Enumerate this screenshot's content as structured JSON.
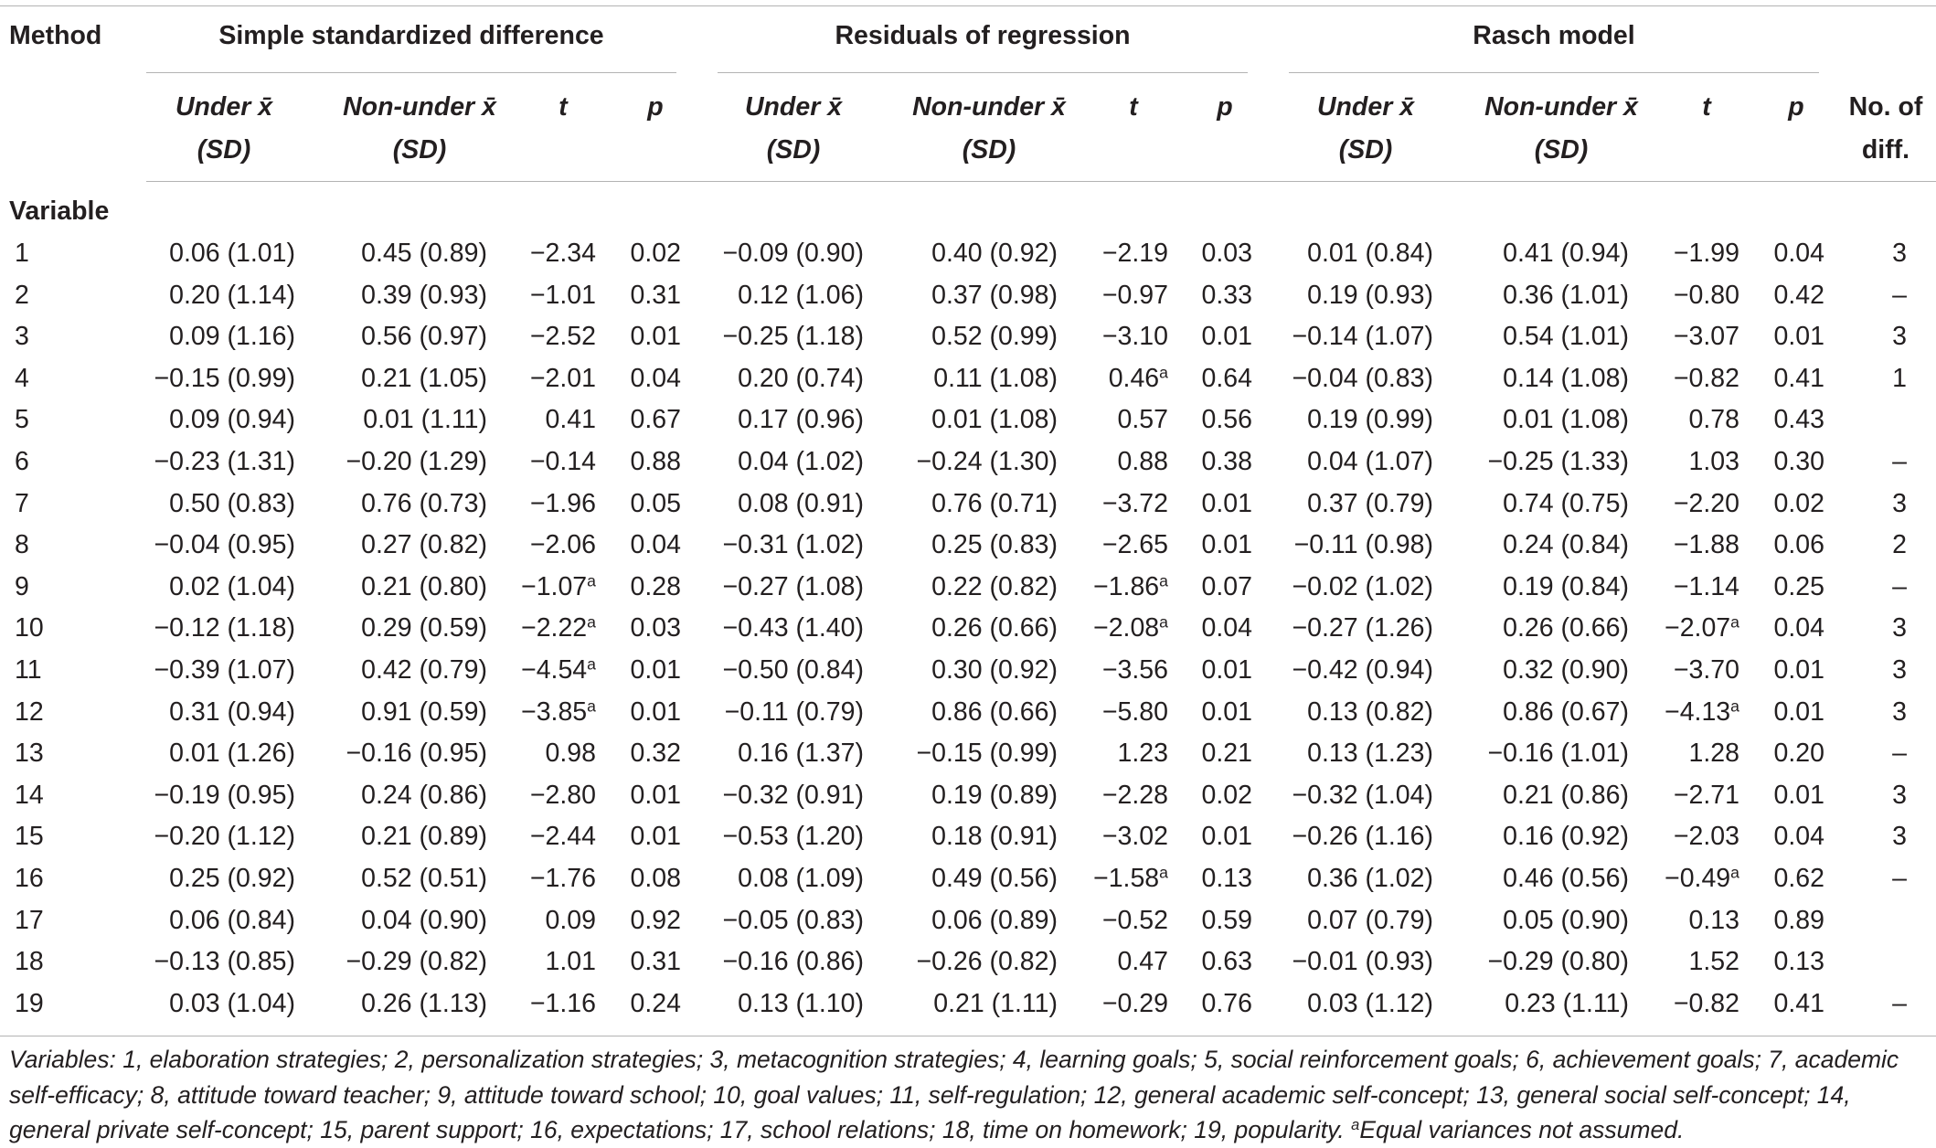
{
  "header": {
    "method": "Method",
    "groups": [
      "Simple standardized difference",
      "Residuals of regression",
      "Rasch model"
    ],
    "under_line1": "Under x̄",
    "nonunder_line1": "Non-under x̄",
    "sd_line2": "(SD)",
    "t": "t",
    "p": "p",
    "nodiff_line1": "No. of",
    "nodiff_line2": "diff.",
    "variable": "Variable"
  },
  "rows": [
    {
      "v": "1",
      "c": [
        [
          "0.06 (1.01)",
          ""
        ],
        [
          "0.45 (0.89)",
          ""
        ],
        [
          "−2.34",
          ""
        ],
        [
          "0.02",
          ""
        ],
        [
          "−0.09 (0.90)",
          ""
        ],
        [
          "0.40 (0.92)",
          ""
        ],
        [
          "−2.19",
          ""
        ],
        [
          "0.03",
          ""
        ],
        [
          "0.01 (0.84)",
          ""
        ],
        [
          "0.41 (0.94)",
          ""
        ],
        [
          "−1.99",
          ""
        ],
        [
          "0.04",
          ""
        ],
        [
          "3",
          ""
        ]
      ]
    },
    {
      "v": "2",
      "c": [
        [
          "0.20 (1.14)",
          ""
        ],
        [
          "0.39 (0.93)",
          ""
        ],
        [
          "−1.01",
          ""
        ],
        [
          "0.31",
          ""
        ],
        [
          "0.12 (1.06)",
          ""
        ],
        [
          "0.37 (0.98)",
          ""
        ],
        [
          "−0.97",
          ""
        ],
        [
          "0.33",
          ""
        ],
        [
          "0.19 (0.93)",
          ""
        ],
        [
          "0.36 (1.01)",
          ""
        ],
        [
          "−0.80",
          ""
        ],
        [
          "0.42",
          ""
        ],
        [
          "–",
          ""
        ]
      ]
    },
    {
      "v": "3",
      "c": [
        [
          "0.09 (1.16)",
          ""
        ],
        [
          "0.56 (0.97)",
          ""
        ],
        [
          "−2.52",
          ""
        ],
        [
          "0.01",
          ""
        ],
        [
          "−0.25 (1.18)",
          ""
        ],
        [
          "0.52 (0.99)",
          ""
        ],
        [
          "−3.10",
          ""
        ],
        [
          "0.01",
          ""
        ],
        [
          "−0.14 (1.07)",
          ""
        ],
        [
          "0.54 (1.01)",
          ""
        ],
        [
          "−3.07",
          ""
        ],
        [
          "0.01",
          ""
        ],
        [
          "3",
          ""
        ]
      ]
    },
    {
      "v": "4",
      "c": [
        [
          "−0.15 (0.99)",
          ""
        ],
        [
          "0.21 (1.05)",
          ""
        ],
        [
          "−2.01",
          ""
        ],
        [
          "0.04",
          ""
        ],
        [
          "0.20 (0.74)",
          ""
        ],
        [
          "0.11 (1.08)",
          ""
        ],
        [
          "0.46",
          "a"
        ],
        [
          "0.64",
          ""
        ],
        [
          "−0.04 (0.83)",
          ""
        ],
        [
          "0.14 (1.08)",
          ""
        ],
        [
          "−0.82",
          ""
        ],
        [
          "0.41",
          ""
        ],
        [
          "1",
          ""
        ]
      ]
    },
    {
      "v": "5",
      "c": [
        [
          "0.09 (0.94)",
          ""
        ],
        [
          "0.01 (1.11)",
          ""
        ],
        [
          "0.41",
          ""
        ],
        [
          "0.67",
          ""
        ],
        [
          "0.17 (0.96)",
          ""
        ],
        [
          "0.01 (1.08)",
          ""
        ],
        [
          "0.57",
          ""
        ],
        [
          "0.56",
          ""
        ],
        [
          "0.19 (0.99)",
          ""
        ],
        [
          "0.01 (1.08)",
          ""
        ],
        [
          "0.78",
          ""
        ],
        [
          "0.43",
          ""
        ],
        [
          "",
          ""
        ]
      ]
    },
    {
      "v": "6",
      "c": [
        [
          "−0.23 (1.31)",
          ""
        ],
        [
          "−0.20 (1.29)",
          ""
        ],
        [
          "−0.14",
          ""
        ],
        [
          "0.88",
          ""
        ],
        [
          "0.04 (1.02)",
          ""
        ],
        [
          "−0.24 (1.30)",
          ""
        ],
        [
          "0.88",
          ""
        ],
        [
          "0.38",
          ""
        ],
        [
          "0.04 (1.07)",
          ""
        ],
        [
          "−0.25 (1.33)",
          ""
        ],
        [
          "1.03",
          ""
        ],
        [
          "0.30",
          ""
        ],
        [
          "–",
          ""
        ]
      ]
    },
    {
      "v": "7",
      "c": [
        [
          "0.50 (0.83)",
          ""
        ],
        [
          "0.76 (0.73)",
          ""
        ],
        [
          "−1.96",
          ""
        ],
        [
          "0.05",
          ""
        ],
        [
          "0.08 (0.91)",
          ""
        ],
        [
          "0.76 (0.71)",
          ""
        ],
        [
          "−3.72",
          ""
        ],
        [
          "0.01",
          ""
        ],
        [
          "0.37 (0.79)",
          ""
        ],
        [
          "0.74 (0.75)",
          ""
        ],
        [
          "−2.20",
          ""
        ],
        [
          "0.02",
          ""
        ],
        [
          "3",
          ""
        ]
      ]
    },
    {
      "v": "8",
      "c": [
        [
          "−0.04 (0.95)",
          ""
        ],
        [
          "0.27 (0.82)",
          ""
        ],
        [
          "−2.06",
          ""
        ],
        [
          "0.04",
          ""
        ],
        [
          "−0.31 (1.02)",
          ""
        ],
        [
          "0.25 (0.83)",
          ""
        ],
        [
          "−2.65",
          ""
        ],
        [
          "0.01",
          ""
        ],
        [
          "−0.11 (0.98)",
          ""
        ],
        [
          "0.24 (0.84)",
          ""
        ],
        [
          "−1.88",
          ""
        ],
        [
          "0.06",
          ""
        ],
        [
          "2",
          ""
        ]
      ]
    },
    {
      "v": "9",
      "c": [
        [
          "0.02 (1.04)",
          ""
        ],
        [
          "0.21 (0.80)",
          ""
        ],
        [
          "−1.07",
          "a"
        ],
        [
          "0.28",
          ""
        ],
        [
          "−0.27 (1.08)",
          ""
        ],
        [
          "0.22 (0.82)",
          ""
        ],
        [
          "−1.86",
          "a"
        ],
        [
          "0.07",
          ""
        ],
        [
          "−0.02 (1.02)",
          ""
        ],
        [
          "0.19 (0.84)",
          ""
        ],
        [
          "−1.14",
          ""
        ],
        [
          "0.25",
          ""
        ],
        [
          "–",
          ""
        ]
      ]
    },
    {
      "v": "10",
      "c": [
        [
          "−0.12 (1.18)",
          ""
        ],
        [
          "0.29 (0.59)",
          ""
        ],
        [
          "−2.22",
          "a"
        ],
        [
          "0.03",
          ""
        ],
        [
          "−0.43 (1.40)",
          ""
        ],
        [
          "0.26 (0.66)",
          ""
        ],
        [
          "−2.08",
          "a"
        ],
        [
          "0.04",
          ""
        ],
        [
          "−0.27 (1.26)",
          ""
        ],
        [
          "0.26 (0.66)",
          ""
        ],
        [
          "−2.07",
          "a"
        ],
        [
          "0.04",
          ""
        ],
        [
          "3",
          ""
        ]
      ]
    },
    {
      "v": "11",
      "c": [
        [
          "−0.39 (1.07)",
          ""
        ],
        [
          "0.42 (0.79)",
          ""
        ],
        [
          "−4.54",
          "a"
        ],
        [
          "0.01",
          ""
        ],
        [
          "−0.50 (0.84)",
          ""
        ],
        [
          "0.30 (0.92)",
          ""
        ],
        [
          "−3.56",
          ""
        ],
        [
          "0.01",
          ""
        ],
        [
          "−0.42 (0.94)",
          ""
        ],
        [
          "0.32 (0.90)",
          ""
        ],
        [
          "−3.70",
          ""
        ],
        [
          "0.01",
          ""
        ],
        [
          "3",
          ""
        ]
      ]
    },
    {
      "v": "12",
      "c": [
        [
          "0.31 (0.94)",
          ""
        ],
        [
          "0.91 (0.59)",
          ""
        ],
        [
          "−3.85",
          "a"
        ],
        [
          "0.01",
          ""
        ],
        [
          "−0.11 (0.79)",
          ""
        ],
        [
          "0.86 (0.66)",
          ""
        ],
        [
          "−5.80",
          ""
        ],
        [
          "0.01",
          ""
        ],
        [
          "0.13 (0.82)",
          ""
        ],
        [
          "0.86 (0.67)",
          ""
        ],
        [
          "−4.13",
          "a"
        ],
        [
          "0.01",
          ""
        ],
        [
          "3",
          ""
        ]
      ]
    },
    {
      "v": "13",
      "c": [
        [
          "0.01 (1.26)",
          ""
        ],
        [
          "−0.16 (0.95)",
          ""
        ],
        [
          "0.98",
          ""
        ],
        [
          "0.32",
          ""
        ],
        [
          "0.16 (1.37)",
          ""
        ],
        [
          "−0.15 (0.99)",
          ""
        ],
        [
          "1.23",
          ""
        ],
        [
          "0.21",
          ""
        ],
        [
          "0.13 (1.23)",
          ""
        ],
        [
          "−0.16 (1.01)",
          ""
        ],
        [
          "1.28",
          ""
        ],
        [
          "0.20",
          ""
        ],
        [
          "–",
          ""
        ]
      ]
    },
    {
      "v": "14",
      "c": [
        [
          "−0.19 (0.95)",
          ""
        ],
        [
          "0.24 (0.86)",
          ""
        ],
        [
          "−2.80",
          ""
        ],
        [
          "0.01",
          ""
        ],
        [
          "−0.32 (0.91)",
          ""
        ],
        [
          "0.19 (0.89)",
          ""
        ],
        [
          "−2.28",
          ""
        ],
        [
          "0.02",
          ""
        ],
        [
          "−0.32 (1.04)",
          ""
        ],
        [
          "0.21 (0.86)",
          ""
        ],
        [
          "−2.71",
          ""
        ],
        [
          "0.01",
          ""
        ],
        [
          "3",
          ""
        ]
      ]
    },
    {
      "v": "15",
      "c": [
        [
          "−0.20 (1.12)",
          ""
        ],
        [
          "0.21 (0.89)",
          ""
        ],
        [
          "−2.44",
          ""
        ],
        [
          "0.01",
          ""
        ],
        [
          "−0.53 (1.20)",
          ""
        ],
        [
          "0.18 (0.91)",
          ""
        ],
        [
          "−3.02",
          ""
        ],
        [
          "0.01",
          ""
        ],
        [
          "−0.26 (1.16)",
          ""
        ],
        [
          "0.16 (0.92)",
          ""
        ],
        [
          "−2.03",
          ""
        ],
        [
          "0.04",
          ""
        ],
        [
          "3",
          ""
        ]
      ]
    },
    {
      "v": "16",
      "c": [
        [
          "0.25 (0.92)",
          ""
        ],
        [
          "0.52 (0.51)",
          ""
        ],
        [
          "−1.76",
          ""
        ],
        [
          "0.08",
          ""
        ],
        [
          "0.08 (1.09)",
          ""
        ],
        [
          "0.49 (0.56)",
          ""
        ],
        [
          "−1.58",
          "a"
        ],
        [
          "0.13",
          ""
        ],
        [
          "0.36 (1.02)",
          ""
        ],
        [
          "0.46 (0.56)",
          ""
        ],
        [
          "−0.49",
          "a"
        ],
        [
          "0.62",
          ""
        ],
        [
          "–",
          ""
        ]
      ]
    },
    {
      "v": "17",
      "c": [
        [
          "0.06 (0.84)",
          ""
        ],
        [
          "0.04 (0.90)",
          ""
        ],
        [
          "0.09",
          ""
        ],
        [
          "0.92",
          ""
        ],
        [
          "−0.05 (0.83)",
          ""
        ],
        [
          "0.06 (0.89)",
          ""
        ],
        [
          "−0.52",
          ""
        ],
        [
          "0.59",
          ""
        ],
        [
          "0.07 (0.79)",
          ""
        ],
        [
          "0.05 (0.90)",
          ""
        ],
        [
          "0.13",
          ""
        ],
        [
          "0.89",
          ""
        ],
        [
          "",
          ""
        ]
      ]
    },
    {
      "v": "18",
      "c": [
        [
          "−0.13 (0.85)",
          ""
        ],
        [
          "−0.29 (0.82)",
          ""
        ],
        [
          "1.01",
          ""
        ],
        [
          "0.31",
          ""
        ],
        [
          "−0.16 (0.86)",
          ""
        ],
        [
          "−0.26 (0.82)",
          ""
        ],
        [
          "0.47",
          ""
        ],
        [
          "0.63",
          ""
        ],
        [
          "−0.01 (0.93)",
          ""
        ],
        [
          "−0.29 (0.80)",
          ""
        ],
        [
          "1.52",
          ""
        ],
        [
          "0.13",
          ""
        ],
        [
          "",
          ""
        ]
      ]
    },
    {
      "v": "19",
      "c": [
        [
          "0.03 (1.04)",
          ""
        ],
        [
          "0.26 (1.13)",
          ""
        ],
        [
          "−1.16",
          ""
        ],
        [
          "0.24",
          ""
        ],
        [
          "0.13 (1.10)",
          ""
        ],
        [
          "0.21 (1.11)",
          ""
        ],
        [
          "−0.29",
          ""
        ],
        [
          "0.76",
          ""
        ],
        [
          "0.03 (1.12)",
          ""
        ],
        [
          "0.23 (1.11)",
          ""
        ],
        [
          "−0.82",
          ""
        ],
        [
          "0.41",
          ""
        ],
        [
          "–",
          ""
        ]
      ]
    }
  ],
  "footnote": {
    "text": "Variables: 1, elaboration strategies; 2, personalization strategies; 3, metacognition strategies; 4, learning goals; 5, social reinforcement goals; 6, achievement goals; 7, academic self-efficacy; 8, attitude toward teacher; 9, attitude toward school; 10, goal values; 11, self-regulation; 12, general academic self-concept; 13, general social self-concept; 14, general private self-concept; 15, parent support; 16, expectations; 17, school relations; 18, time on homework; 19, popularity.",
    "marker": "a",
    "marker_text": "Equal variances not assumed."
  }
}
